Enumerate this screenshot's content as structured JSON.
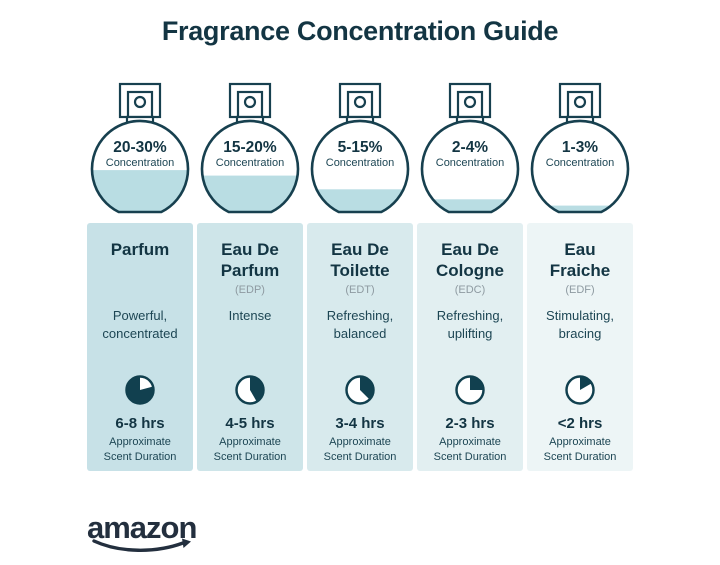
{
  "title": "Fragrance Concentration Guide",
  "colors": {
    "text_teal": "#133543",
    "stroke_teal": "#17404f",
    "liquid": "#b9dde3",
    "abbr_gray": "#8e9aa1",
    "logo_navy": "#232f3e",
    "card_backgrounds": [
      "#c7e1e7",
      "#cee5e9",
      "#d8eaed",
      "#e2eff1",
      "#edf5f6"
    ]
  },
  "columns": [
    {
      "id": "parfum",
      "bottle": {
        "percent_label": "20-30%",
        "concentration_label": "Concentration",
        "fill_pct": 46
      },
      "card": {
        "title": "Parfum",
        "abbr": "",
        "description": "Powerful,\nconcentrated",
        "duration": "6-8 hrs",
        "duration_note": "Approximate\nScent Duration"
      },
      "clock": {
        "start_deg": 75,
        "end_deg": 360
      }
    },
    {
      "id": "eau-de-parfum",
      "bottle": {
        "percent_label": "15-20%",
        "concentration_label": "Concentration",
        "fill_pct": 40
      },
      "card": {
        "title": "Eau De\nParfum",
        "abbr": "(EDP)",
        "description": "Intense",
        "duration": "4-5 hrs",
        "duration_note": "Approximate\nScent Duration"
      },
      "clock": {
        "start_deg": 0,
        "end_deg": 150
      }
    },
    {
      "id": "eau-de-toilette",
      "bottle": {
        "percent_label": "5-15%",
        "concentration_label": "Concentration",
        "fill_pct": 25
      },
      "card": {
        "title": "Eau De\nToilette",
        "abbr": "(EDT)",
        "description": "Refreshing,\nbalanced",
        "duration": "3-4 hrs",
        "duration_note": "Approximate\nScent Duration"
      },
      "clock": {
        "start_deg": 0,
        "end_deg": 135
      }
    },
    {
      "id": "eau-de-cologne",
      "bottle": {
        "percent_label": "2-4%",
        "concentration_label": "Concentration",
        "fill_pct": 14
      },
      "card": {
        "title": "Eau De\nCologne",
        "abbr": "(EDC)",
        "description": "Refreshing,\nuplifting",
        "duration": "2-3 hrs",
        "duration_note": "Approximate\nScent Duration"
      },
      "clock": {
        "start_deg": 0,
        "end_deg": 90
      }
    },
    {
      "id": "eau-fraiche",
      "bottle": {
        "percent_label": "1-3%",
        "concentration_label": "Concentration",
        "fill_pct": 7
      },
      "card": {
        "title": "Eau\nFraiche",
        "abbr": "(EDF)",
        "description": "Stimulating,\nbracing",
        "duration": "<2 hrs",
        "duration_note": "Approximate\nScent Duration"
      },
      "clock": {
        "start_deg": 0,
        "end_deg": 60
      }
    }
  ],
  "footer": {
    "logo_text": "amazon"
  }
}
